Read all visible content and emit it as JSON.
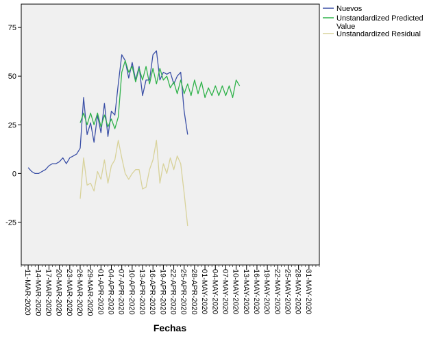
{
  "chart_data": {
    "type": "line",
    "xlabel": "Fechas",
    "ylabel": "",
    "x_ticks": [
      "11-MAR-2020",
      "14-MAR-2020",
      "17-MAR-2020",
      "20-MAR-2020",
      "23-MAR-2020",
      "26-MAR-2020",
      "29-MAR-2020",
      "01-APR-2020",
      "04-APR-2020",
      "07-APR-2020",
      "10-APR-2020",
      "13-APR-2020",
      "16-APR-2020",
      "19-APR-2020",
      "22-APR-2020",
      "25-APR-2020",
      "28-APR-2020",
      "01-MAY-2020",
      "04-MAY-2020",
      "07-MAY-2020",
      "10-MAY-2020",
      "13-MAY-2020",
      "16-MAY-2020",
      "19-MAY-2020",
      "22-MAY-2020",
      "25-MAY-2020",
      "28-MAY-2020",
      "31-MAY-2020"
    ],
    "x_range": [
      "2020-03-09",
      "2020-06-03"
    ],
    "y_ticks": [
      -25,
      0,
      25,
      50,
      75
    ],
    "ylim": [
      -47,
      87
    ],
    "grid": false,
    "legend_position": "right",
    "series": [
      {
        "name": "Nuevos",
        "color": "#3a4fa6",
        "points": [
          [
            "2020-03-11",
            3
          ],
          [
            "2020-03-12",
            1
          ],
          [
            "2020-03-13",
            0
          ],
          [
            "2020-03-14",
            0
          ],
          [
            "2020-03-15",
            1
          ],
          [
            "2020-03-16",
            2
          ],
          [
            "2020-03-17",
            4
          ],
          [
            "2020-03-18",
            5
          ],
          [
            "2020-03-19",
            5
          ],
          [
            "2020-03-20",
            6
          ],
          [
            "2020-03-21",
            8
          ],
          [
            "2020-03-22",
            5
          ],
          [
            "2020-03-23",
            8
          ],
          [
            "2020-03-24",
            9
          ],
          [
            "2020-03-25",
            10
          ],
          [
            "2020-03-26",
            13
          ],
          [
            "2020-03-27",
            39
          ],
          [
            "2020-03-28",
            20
          ],
          [
            "2020-03-29",
            26
          ],
          [
            "2020-03-30",
            16
          ],
          [
            "2020-03-31",
            30
          ],
          [
            "2020-04-01",
            21
          ],
          [
            "2020-04-02",
            36
          ],
          [
            "2020-04-03",
            19
          ],
          [
            "2020-04-04",
            32
          ],
          [
            "2020-04-05",
            30
          ],
          [
            "2020-04-06",
            46
          ],
          [
            "2020-04-07",
            61
          ],
          [
            "2020-04-08",
            58
          ],
          [
            "2020-04-09",
            49
          ],
          [
            "2020-04-10",
            57
          ],
          [
            "2020-04-11",
            48
          ],
          [
            "2020-04-12",
            55
          ],
          [
            "2020-04-13",
            40
          ],
          [
            "2020-04-14",
            48
          ],
          [
            "2020-04-15",
            48
          ],
          [
            "2020-04-16",
            61
          ],
          [
            "2020-04-17",
            63
          ],
          [
            "2020-04-18",
            48
          ],
          [
            "2020-04-19",
            52
          ],
          [
            "2020-04-20",
            51
          ],
          [
            "2020-04-21",
            52
          ],
          [
            "2020-04-22",
            46
          ],
          [
            "2020-04-23",
            50
          ],
          [
            "2020-04-24",
            52
          ],
          [
            "2020-04-25",
            32
          ],
          [
            "2020-04-26",
            20
          ]
        ]
      },
      {
        "name": "Unstandardized Predicted Value",
        "color": "#2fb24a",
        "points": [
          [
            "2020-03-26",
            26
          ],
          [
            "2020-03-27",
            31
          ],
          [
            "2020-03-28",
            25
          ],
          [
            "2020-03-29",
            31
          ],
          [
            "2020-03-30",
            25
          ],
          [
            "2020-03-31",
            31
          ],
          [
            "2020-04-01",
            24
          ],
          [
            "2020-04-02",
            30
          ],
          [
            "2020-04-03",
            24
          ],
          [
            "2020-04-04",
            28
          ],
          [
            "2020-04-05",
            23
          ],
          [
            "2020-04-06",
            29
          ],
          [
            "2020-04-07",
            52
          ],
          [
            "2020-04-08",
            58
          ],
          [
            "2020-04-09",
            52
          ],
          [
            "2020-04-10",
            55
          ],
          [
            "2020-04-11",
            47
          ],
          [
            "2020-04-12",
            54
          ],
          [
            "2020-04-13",
            48
          ],
          [
            "2020-04-14",
            55
          ],
          [
            "2020-04-15",
            46
          ],
          [
            "2020-04-16",
            54
          ],
          [
            "2020-04-17",
            46
          ],
          [
            "2020-04-18",
            54
          ],
          [
            "2020-04-19",
            48
          ],
          [
            "2020-04-20",
            50
          ],
          [
            "2020-04-21",
            44
          ],
          [
            "2020-04-22",
            47
          ],
          [
            "2020-04-23",
            41
          ],
          [
            "2020-04-24",
            48
          ],
          [
            "2020-04-25",
            41
          ],
          [
            "2020-04-26",
            46
          ],
          [
            "2020-04-27",
            40
          ],
          [
            "2020-04-28",
            48
          ],
          [
            "2020-04-29",
            41
          ],
          [
            "2020-04-30",
            47
          ],
          [
            "2020-05-01",
            39
          ],
          [
            "2020-05-02",
            44
          ],
          [
            "2020-05-03",
            40
          ],
          [
            "2020-05-04",
            45
          ],
          [
            "2020-05-05",
            40
          ],
          [
            "2020-05-06",
            45
          ],
          [
            "2020-05-07",
            40
          ],
          [
            "2020-05-08",
            45
          ],
          [
            "2020-05-09",
            39
          ],
          [
            "2020-05-10",
            48
          ],
          [
            "2020-05-11",
            45
          ]
        ]
      },
      {
        "name": "Unstandardized Residual",
        "color": "#d8d29a",
        "points": [
          [
            "2020-03-26",
            -13
          ],
          [
            "2020-03-27",
            8
          ],
          [
            "2020-03-28",
            -6
          ],
          [
            "2020-03-29",
            -5
          ],
          [
            "2020-03-30",
            -9
          ],
          [
            "2020-03-31",
            1
          ],
          [
            "2020-04-01",
            -3
          ],
          [
            "2020-04-02",
            7
          ],
          [
            "2020-04-03",
            -5
          ],
          [
            "2020-04-04",
            4
          ],
          [
            "2020-04-05",
            7
          ],
          [
            "2020-04-06",
            17
          ],
          [
            "2020-04-07",
            8
          ],
          [
            "2020-04-08",
            0
          ],
          [
            "2020-04-09",
            -3
          ],
          [
            "2020-04-10",
            0
          ],
          [
            "2020-04-11",
            2
          ],
          [
            "2020-04-12",
            2
          ],
          [
            "2020-04-13",
            -8
          ],
          [
            "2020-04-14",
            -7
          ],
          [
            "2020-04-15",
            2
          ],
          [
            "2020-04-16",
            7
          ],
          [
            "2020-04-17",
            17
          ],
          [
            "2020-04-18",
            -5
          ],
          [
            "2020-04-19",
            5
          ],
          [
            "2020-04-20",
            0
          ],
          [
            "2020-04-21",
            8
          ],
          [
            "2020-04-22",
            2
          ],
          [
            "2020-04-23",
            9
          ],
          [
            "2020-04-24",
            5
          ],
          [
            "2020-04-25",
            -10
          ],
          [
            "2020-04-26",
            -27
          ]
        ]
      }
    ]
  }
}
